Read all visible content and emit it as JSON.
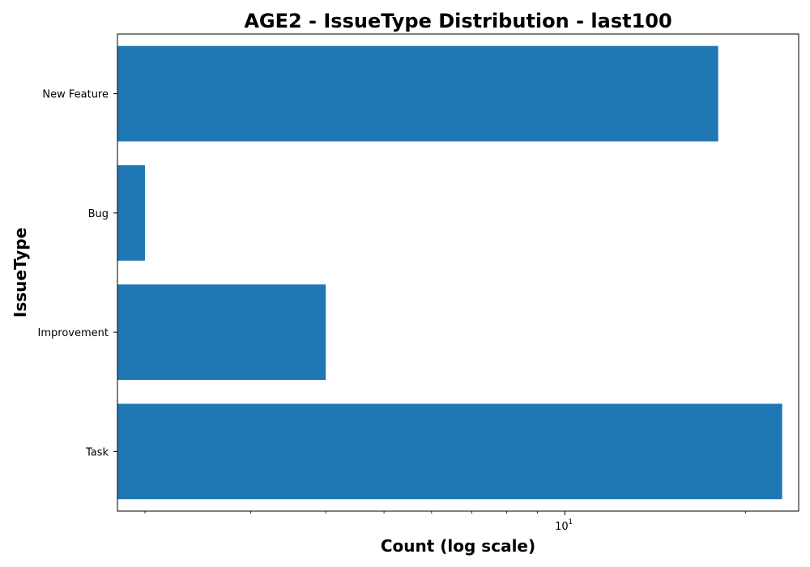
{
  "chart_data": {
    "type": "bar",
    "orientation": "horizontal",
    "title": "AGE2 - IssueType Distribution - last100",
    "xlabel": "Count (log scale)",
    "ylabel": "IssueType",
    "x_scale": "log",
    "xlim": [
      1.8,
      24.5
    ],
    "x_major_ticks": [
      {
        "value": 10,
        "base": "10",
        "exponent": "1"
      }
    ],
    "x_minor_ticks": [
      2,
      3,
      4,
      5,
      6,
      7,
      8,
      9,
      20
    ],
    "categories": [
      "Task",
      "Improvement",
      "Bug",
      "New Feature"
    ],
    "values": [
      23,
      4,
      2,
      18
    ],
    "bar_color": "#1f77b4",
    "grid": false,
    "legend": false
  }
}
